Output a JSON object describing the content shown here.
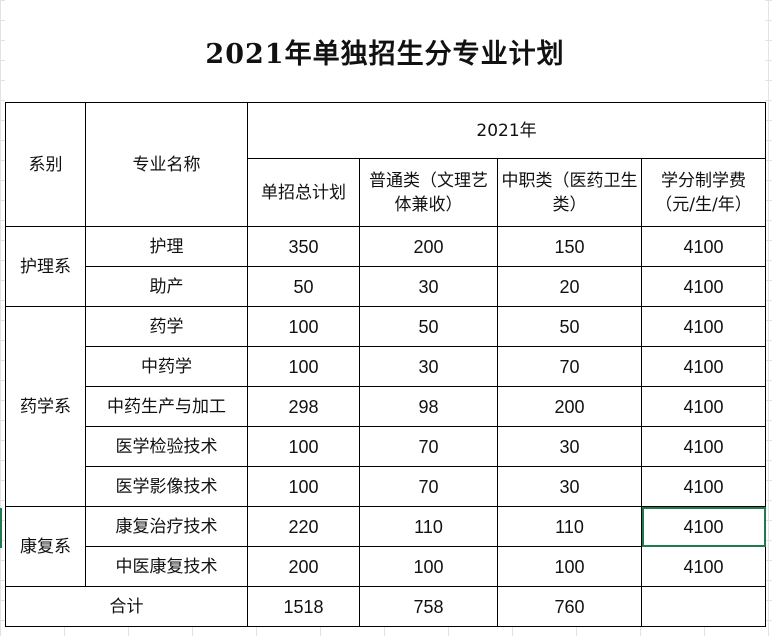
{
  "title": "2021年单独招生分专业计划",
  "header": {
    "dept": "系别",
    "major": "专业名称",
    "year": "2021年",
    "total": "单招总计划",
    "general": "普通类（文理艺体兼收）",
    "vocational": "中职类（医药卫生类）",
    "fee": "学分制学费（元/生/年）"
  },
  "groups": [
    {
      "dept": "护理系",
      "rows": [
        {
          "major": "护理",
          "total": "350",
          "general": "200",
          "vocational": "150",
          "fee": "4100"
        },
        {
          "major": "助产",
          "total": "50",
          "general": "30",
          "vocational": "20",
          "fee": "4100"
        }
      ]
    },
    {
      "dept": "药学系",
      "rows": [
        {
          "major": "药学",
          "total": "100",
          "general": "50",
          "vocational": "50",
          "fee": "4100"
        },
        {
          "major": "中药学",
          "total": "100",
          "general": "30",
          "vocational": "70",
          "fee": "4100"
        },
        {
          "major": "中药生产与加工",
          "total": "298",
          "general": "98",
          "vocational": "200",
          "fee": "4100"
        },
        {
          "major": "医学检验技术",
          "total": "100",
          "general": "70",
          "vocational": "30",
          "fee": "4100"
        },
        {
          "major": "医学影像技术",
          "total": "100",
          "general": "70",
          "vocational": "30",
          "fee": "4100"
        }
      ]
    },
    {
      "dept": "康复系",
      "rows": [
        {
          "major": "康复治疗技术",
          "total": "220",
          "general": "110",
          "vocational": "110",
          "fee": "4100"
        },
        {
          "major": "中医康复技术",
          "total": "200",
          "general": "100",
          "vocational": "100",
          "fee": "4100"
        }
      ]
    }
  ],
  "totals": {
    "label": "合计",
    "total": "1518",
    "general": "758",
    "vocational": "760",
    "fee": ""
  },
  "selection_color": "#1f7a4d"
}
